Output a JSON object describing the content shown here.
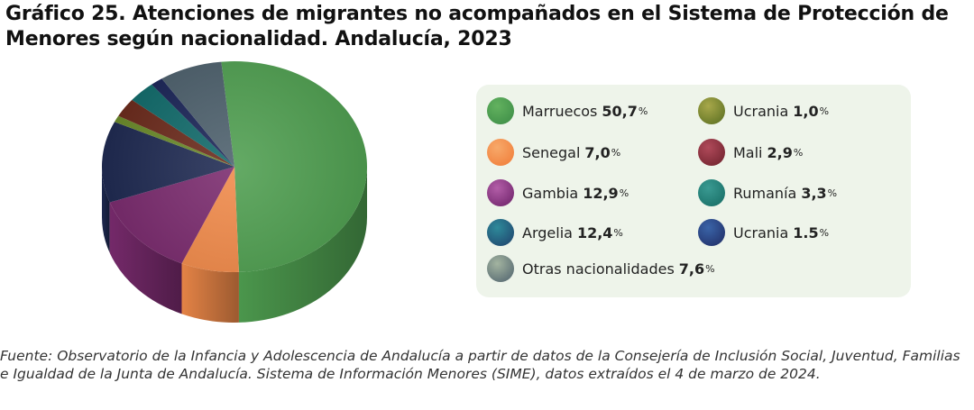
{
  "chart_data": {
    "type": "pie",
    "title": "Gráfico 25. Atenciones de migrantes no acompañados en el Sistema de Protección de Menores según nacionalidad. Andalucía, 2023",
    "unit": "%",
    "slices": [
      {
        "label": "Marruecos",
        "value": 50.7,
        "display": "50,7",
        "color": "#4f9e50"
      },
      {
        "label": "Senegal",
        "value": 7.0,
        "display": "7,0",
        "color": "#f08a4a"
      },
      {
        "label": "Gambia",
        "value": 12.9,
        "display": "12,9",
        "color": "#7a2b6e"
      },
      {
        "label": "Argelia",
        "value": 12.4,
        "display": "12,4",
        "color": "#1f2a52"
      },
      {
        "label": "Ucrania",
        "value": 1.0,
        "display": "1,0",
        "color": "#6b8a2a"
      },
      {
        "label": "Mali",
        "value": 2.9,
        "display": "2,9",
        "color": "#6b2a1c"
      },
      {
        "label": "Rumanía",
        "value": 3.3,
        "display": "3,3",
        "color": "#116a6a"
      },
      {
        "label": "Ucrania",
        "value": 1.5,
        "display": "1.5",
        "color": "#1b2557"
      },
      {
        "label": "Otras nacionalidades",
        "value": 7.6,
        "display": "7,6",
        "color": "#4d606c"
      }
    ],
    "pie_order": [
      0,
      1,
      2,
      3,
      4,
      5,
      6,
      7,
      8
    ],
    "legend_columns": [
      [
        0,
        1,
        2,
        3,
        8
      ],
      [
        4,
        5,
        6,
        7
      ]
    ]
  },
  "legend_swatch_gradients": [
    [
      "#63b25f",
      "#3a8a45"
    ],
    [
      "#f7a96a",
      "#f07a36"
    ],
    [
      "#b35ea8",
      "#6a1f66"
    ],
    [
      "#2e8a9a",
      "#1f3f6a"
    ],
    [
      "#a8a84a",
      "#556b1f"
    ],
    [
      "#b04a5a",
      "#6b1f2a"
    ],
    [
      "#3a9a92",
      "#156a62"
    ],
    [
      "#3a64a8",
      "#1f2a62"
    ],
    [
      "#a3b4a0",
      "#4d606c"
    ]
  ],
  "source": "Fuente: Observatorio de la Infancia y Adolescencia de Andalucía a partir de datos de la Consejería de Inclusión Social, Juventud, Familias e Igualdad de la Junta de Andalucía. Sistema de Información Menores (SIME), datos extraídos el 4 de marzo de 2024."
}
